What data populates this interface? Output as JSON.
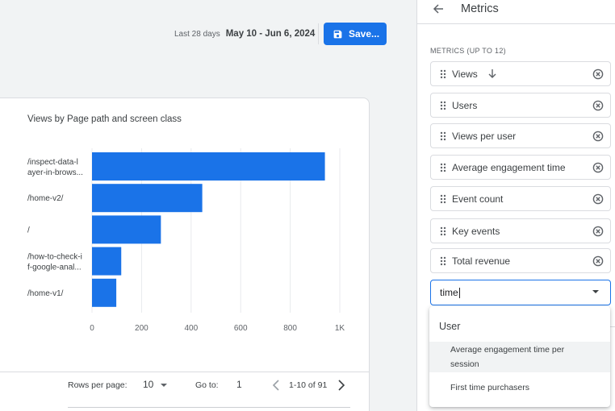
{
  "header": {
    "date_label": "Last 28 days",
    "date_range": "May 10 - Jun 6, 2024",
    "save_label": "Save..."
  },
  "chart_data": {
    "type": "bar",
    "orientation": "horizontal",
    "title": "Views by Page path and screen class",
    "categories": [
      "/inspect-data-layer-in-browser",
      "/home-v2/",
      "/",
      "/how-to-check-if-google-analytics",
      "/home-v1/"
    ],
    "category_label_lines": [
      [
        "/inspect-data-l",
        "ayer-in-brows..."
      ],
      [
        "/home-v2/"
      ],
      [
        "/"
      ],
      [
        "/how-to-check-i",
        "f-google-anal..."
      ],
      [
        "/home-v1/"
      ]
    ],
    "values": [
      940,
      445,
      278,
      118,
      98
    ],
    "xlim": [
      0,
      1000
    ],
    "xticks": [
      0,
      200,
      400,
      600,
      800,
      1000
    ],
    "xtick_labels": [
      "0",
      "200",
      "400",
      "600",
      "800",
      "1K"
    ],
    "grid": true,
    "bar_color": "#1a73e8",
    "grid_color": "#e8eaed"
  },
  "pager": {
    "rows_label": "Rows per page:",
    "rows_value": "10",
    "goto_label": "Go to:",
    "goto_value": "1",
    "page_info": "1-10 of 91"
  },
  "panel": {
    "title": "Metrics",
    "section_label": "METRICS (UP TO 12)",
    "metrics": [
      {
        "name": "Views",
        "sorted": true
      },
      {
        "name": "Users"
      },
      {
        "name": "Views per user"
      },
      {
        "name": "Average engagement time"
      },
      {
        "name": "Event count"
      },
      {
        "name": "Key events"
      },
      {
        "name": "Total revenue"
      }
    ],
    "search_value": "time",
    "dropdown": {
      "group_label": "User",
      "options": [
        "Average engagement time per session",
        "First time purchasers"
      ]
    }
  },
  "icons": {
    "save": "save-icon",
    "back": "arrow-left-icon",
    "drag": "drag-handle-icon",
    "sort": "arrow-down-icon",
    "remove": "remove-circle-icon",
    "prev": "chevron-left-icon",
    "next": "chevron-right-icon"
  },
  "colors": {
    "accent": "#1a73e8",
    "text": "#3c4043",
    "muted": "#5f6368",
    "border": "#dadce0"
  }
}
